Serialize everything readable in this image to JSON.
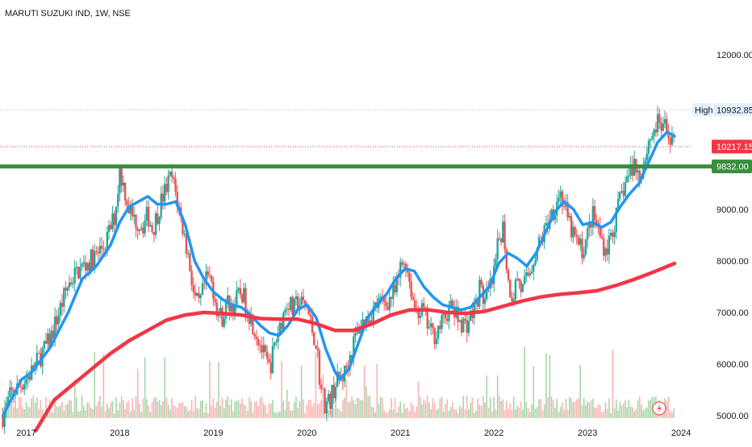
{
  "header": {
    "symbol": "MARUTI SUZUKI IND, 1W, NSE"
  },
  "chart_data": {
    "type": "candlestick",
    "interval": "1W",
    "symbol": "MARUTI SUZUKI IND",
    "exchange": "NSE",
    "x_tick_labels": [
      "2017",
      "2018",
      "2019",
      "2020",
      "2021",
      "2022",
      "2023",
      "2024"
    ],
    "y_tick_labels": [
      "12000.00",
      "9000.00",
      "8000.00",
      "7000.00",
      "6000.00",
      "5000.00"
    ],
    "ylim": [
      4950,
      12750
    ],
    "x_range": [
      2016.72,
      2024.12
    ],
    "price_markers": {
      "high": {
        "label": "High",
        "value": 10932.85,
        "value_label": "10932.85"
      },
      "last": {
        "value": 10217.15,
        "value_label": "10217.15",
        "color": "#f23645"
      },
      "horizontal_line": {
        "value": 9832.0,
        "value_label": "9832.00",
        "color": "#388e3c"
      }
    },
    "close_series": {
      "name": "",
      "points": [
        [
          2016.75,
          4990
        ],
        [
          2016.83,
          5380
        ],
        [
          2016.95,
          5620
        ],
        [
          2017.05,
          5820
        ],
        [
          2017.15,
          6150
        ],
        [
          2017.25,
          6450
        ],
        [
          2017.35,
          7000
        ],
        [
          2017.45,
          7550
        ],
        [
          2017.55,
          7800
        ],
        [
          2017.65,
          7950
        ],
        [
          2017.75,
          8100
        ],
        [
          2017.85,
          8350
        ],
        [
          2017.95,
          8900
        ],
        [
          2018.0,
          9750
        ],
        [
          2018.05,
          9400
        ],
        [
          2018.1,
          9000
        ],
        [
          2018.15,
          8800
        ],
        [
          2018.25,
          8700
        ],
        [
          2018.3,
          8900
        ],
        [
          2018.35,
          8600
        ],
        [
          2018.45,
          9200
        ],
        [
          2018.55,
          9650
        ],
        [
          2018.6,
          9300
        ],
        [
          2018.7,
          8400
        ],
        [
          2018.75,
          7900
        ],
        [
          2018.8,
          7250
        ],
        [
          2018.85,
          7100
        ],
        [
          2018.9,
          7500
        ],
        [
          2018.95,
          7700
        ],
        [
          2019.0,
          7450
        ],
        [
          2019.05,
          7000
        ],
        [
          2019.1,
          6900
        ],
        [
          2019.15,
          7200
        ],
        [
          2019.2,
          7100
        ],
        [
          2019.3,
          7400
        ],
        [
          2019.4,
          6900
        ],
        [
          2019.5,
          6400
        ],
        [
          2019.55,
          6100
        ],
        [
          2019.6,
          5900
        ],
        [
          2019.7,
          6700
        ],
        [
          2019.8,
          7250
        ],
        [
          2019.85,
          7000
        ],
        [
          2019.9,
          7200
        ],
        [
          2020.0,
          7100
        ],
        [
          2020.05,
          6700
        ],
        [
          2020.1,
          6400
        ],
        [
          2020.15,
          5500
        ],
        [
          2020.2,
          5200
        ],
        [
          2020.25,
          5300
        ],
        [
          2020.3,
          5600
        ],
        [
          2020.4,
          5800
        ],
        [
          2020.45,
          6100
        ],
        [
          2020.55,
          6700
        ],
        [
          2020.65,
          6900
        ],
        [
          2020.75,
          7150
        ],
        [
          2020.85,
          7200
        ],
        [
          2020.95,
          7400
        ],
        [
          2021.0,
          7850
        ],
        [
          2021.05,
          8050
        ],
        [
          2021.1,
          7600
        ],
        [
          2021.15,
          7100
        ],
        [
          2021.25,
          7000
        ],
        [
          2021.3,
          6700
        ],
        [
          2021.35,
          6550
        ],
        [
          2021.45,
          6800
        ],
        [
          2021.5,
          7000
        ],
        [
          2021.55,
          7100
        ],
        [
          2021.6,
          6900
        ],
        [
          2021.7,
          6750
        ],
        [
          2021.8,
          7100
        ],
        [
          2021.85,
          7500
        ],
        [
          2021.9,
          7200
        ],
        [
          2021.95,
          7400
        ],
        [
          2022.0,
          7700
        ],
        [
          2022.05,
          8400
        ],
        [
          2022.1,
          8700
        ],
        [
          2022.15,
          7600
        ],
        [
          2022.2,
          7300
        ],
        [
          2022.25,
          7700
        ],
        [
          2022.3,
          7400
        ],
        [
          2022.4,
          7900
        ],
        [
          2022.45,
          8200
        ],
        [
          2022.5,
          8400
        ],
        [
          2022.55,
          8600
        ],
        [
          2022.6,
          8900
        ],
        [
          2022.65,
          9050
        ],
        [
          2022.7,
          9350
        ],
        [
          2022.75,
          9100
        ],
        [
          2022.8,
          8700
        ],
        [
          2022.85,
          8500
        ],
        [
          2022.9,
          8300
        ],
        [
          2022.95,
          8200
        ],
        [
          2023.0,
          8500
        ],
        [
          2023.05,
          8900
        ],
        [
          2023.1,
          8700
        ],
        [
          2023.15,
          8400
        ],
        [
          2023.2,
          8200
        ],
        [
          2023.25,
          8500
        ],
        [
          2023.3,
          8800
        ],
        [
          2023.35,
          9200
        ],
        [
          2023.4,
          9500
        ],
        [
          2023.45,
          9700
        ],
        [
          2023.5,
          9900
        ],
        [
          2023.55,
          9650
        ],
        [
          2023.6,
          9900
        ],
        [
          2023.65,
          10300
        ],
        [
          2023.7,
          10500
        ],
        [
          2023.75,
          10650
        ],
        [
          2023.8,
          10600
        ],
        [
          2023.85,
          10500
        ],
        [
          2023.9,
          10400
        ],
        [
          2023.93,
          10217.15
        ]
      ]
    },
    "moving_averages": [
      {
        "name": "",
        "color": "#2196f3",
        "points": [
          [
            2016.75,
            4990
          ],
          [
            2016.95,
            5700
          ],
          [
            2017.05,
            5820
          ],
          [
            2017.25,
            6300
          ],
          [
            2017.45,
            7000
          ],
          [
            2017.6,
            7650
          ],
          [
            2017.75,
            7900
          ],
          [
            2017.9,
            8300
          ],
          [
            2018.0,
            8750
          ],
          [
            2018.1,
            9050
          ],
          [
            2018.2,
            9150
          ],
          [
            2018.3,
            9250
          ],
          [
            2018.4,
            9100
          ],
          [
            2018.5,
            9100
          ],
          [
            2018.6,
            9150
          ],
          [
            2018.7,
            8700
          ],
          [
            2018.8,
            8000
          ],
          [
            2018.9,
            7650
          ],
          [
            2019.0,
            7400
          ],
          [
            2019.1,
            7250
          ],
          [
            2019.2,
            7150
          ],
          [
            2019.3,
            7100
          ],
          [
            2019.4,
            6950
          ],
          [
            2019.5,
            6750
          ],
          [
            2019.6,
            6600
          ],
          [
            2019.7,
            6550
          ],
          [
            2019.8,
            6750
          ],
          [
            2019.9,
            7050
          ],
          [
            2020.0,
            7150
          ],
          [
            2020.1,
            6900
          ],
          [
            2020.2,
            6300
          ],
          [
            2020.3,
            5850
          ],
          [
            2020.35,
            5700
          ],
          [
            2020.45,
            5900
          ],
          [
            2020.55,
            6400
          ],
          [
            2020.65,
            6900
          ],
          [
            2020.75,
            7150
          ],
          [
            2020.85,
            7350
          ],
          [
            2020.95,
            7650
          ],
          [
            2021.05,
            7850
          ],
          [
            2021.15,
            7800
          ],
          [
            2021.25,
            7500
          ],
          [
            2021.35,
            7300
          ],
          [
            2021.45,
            7150
          ],
          [
            2021.55,
            7100
          ],
          [
            2021.65,
            7050
          ],
          [
            2021.75,
            7100
          ],
          [
            2021.85,
            7300
          ],
          [
            2021.95,
            7500
          ],
          [
            2022.05,
            7950
          ],
          [
            2022.15,
            8150
          ],
          [
            2022.25,
            8050
          ],
          [
            2022.35,
            7900
          ],
          [
            2022.45,
            8150
          ],
          [
            2022.55,
            8550
          ],
          [
            2022.65,
            8950
          ],
          [
            2022.75,
            9150
          ],
          [
            2022.85,
            9000
          ],
          [
            2022.95,
            8700
          ],
          [
            2023.05,
            8750
          ],
          [
            2023.15,
            8650
          ],
          [
            2023.25,
            8750
          ],
          [
            2023.35,
            9050
          ],
          [
            2023.45,
            9300
          ],
          [
            2023.55,
            9500
          ],
          [
            2023.65,
            9900
          ],
          [
            2023.75,
            10300
          ],
          [
            2023.85,
            10500
          ],
          [
            2023.93,
            10420
          ]
        ]
      },
      {
        "name": "",
        "color": "#f23645",
        "points": [
          [
            2017.1,
            4700
          ],
          [
            2017.3,
            5300
          ],
          [
            2017.5,
            5600
          ],
          [
            2017.7,
            5900
          ],
          [
            2017.9,
            6200
          ],
          [
            2018.1,
            6450
          ],
          [
            2018.3,
            6650
          ],
          [
            2018.5,
            6850
          ],
          [
            2018.7,
            6950
          ],
          [
            2018.9,
            7000
          ],
          [
            2019.1,
            6980
          ],
          [
            2019.3,
            6950
          ],
          [
            2019.5,
            6880
          ],
          [
            2019.7,
            6870
          ],
          [
            2019.9,
            6870
          ],
          [
            2020.1,
            6780
          ],
          [
            2020.3,
            6650
          ],
          [
            2020.5,
            6650
          ],
          [
            2020.7,
            6780
          ],
          [
            2020.9,
            6950
          ],
          [
            2021.1,
            7050
          ],
          [
            2021.3,
            7050
          ],
          [
            2021.5,
            7000
          ],
          [
            2021.7,
            6980
          ],
          [
            2021.9,
            7020
          ],
          [
            2022.1,
            7120
          ],
          [
            2022.3,
            7220
          ],
          [
            2022.5,
            7300
          ],
          [
            2022.7,
            7350
          ],
          [
            2022.9,
            7380
          ],
          [
            2023.1,
            7420
          ],
          [
            2023.3,
            7520
          ],
          [
            2023.5,
            7640
          ],
          [
            2023.7,
            7780
          ],
          [
            2023.93,
            7950
          ]
        ]
      }
    ],
    "grid": false,
    "legend": "none"
  },
  "colors": {
    "up": "#26a69a",
    "down": "#ef5350",
    "vol_up": "#a5d6a7",
    "vol_down": "#f8b4b4",
    "axis_text": "#131722",
    "high_line": "#b2b5be"
  },
  "icons": {
    "lightning": "lightning-icon"
  }
}
